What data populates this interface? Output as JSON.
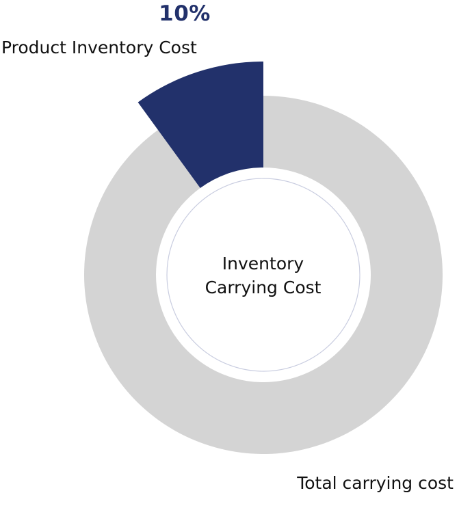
{
  "chart_data": {
    "type": "pie",
    "title": "",
    "center_label": {
      "line1": "Inventory",
      "line2": "Carrying Cost"
    },
    "slices": [
      {
        "label": "Product Inventory Cost",
        "value": 10,
        "value_label": "10%",
        "color": "#22316b",
        "exploded": true
      },
      {
        "label": "Total carrying cost",
        "value": 90,
        "value_label": "",
        "color": "#d4d4d4",
        "exploded": false
      }
    ],
    "legend": "none"
  },
  "colors": {
    "accent": "#22316b",
    "track": "#d4d4d4",
    "inner_ring": "#c9cde0"
  }
}
